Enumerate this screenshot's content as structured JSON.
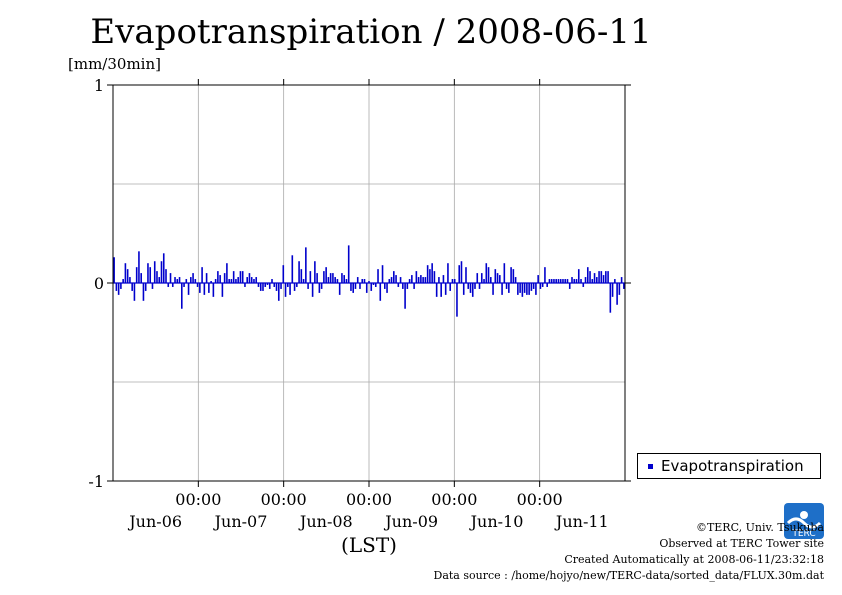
{
  "title": "Evapotranspiration / 2008-06-11",
  "y_unit": "[mm/30min]",
  "x_axis_label": "(LST)",
  "legend": {
    "label": "Evapotranspiration",
    "color": "#0000cc"
  },
  "credit": {
    "line1": "©TERC, Univ. Tsukuba",
    "line2": "Observed at TERC Tower site",
    "line3": "Created Automatically at 2008-06-11/23:32:18",
    "line4": "Data source : /home/hojyo/new/TERC-data/sorted_data/FLUX.30m.dat"
  },
  "logo": {
    "text": "TERC",
    "color": "#1e6fc8"
  },
  "chart_data": {
    "type": "bar",
    "title": "Evapotranspiration / 2008-06-11",
    "ylabel": "[mm/30min]",
    "xlabel": "(LST)",
    "ylim": [
      -1,
      1
    ],
    "y_ticks": [
      "1",
      "0",
      "-1"
    ],
    "y_tick_values": [
      1,
      0,
      -1
    ],
    "x_tick_labels_top": [
      "00:00",
      "00:00",
      "00:00",
      "00:00",
      "00:00"
    ],
    "x_tick_labels_bottom": [
      "Jun-06",
      "Jun-07",
      "Jun-08",
      "Jun-09",
      "Jun-10",
      "Jun-11"
    ],
    "grid": true,
    "legend_position": "right",
    "series": [
      {
        "name": "Evapotranspiration",
        "color": "#0000cc",
        "values": [
          0.13,
          -0.04,
          -0.06,
          -0.03,
          0.02,
          0.1,
          0.07,
          0.03,
          -0.04,
          -0.09,
          0.08,
          0.16,
          0.05,
          -0.09,
          -0.04,
          0.1,
          0.08,
          -0.03,
          0.11,
          0.06,
          0.03,
          0.11,
          0.15,
          0.07,
          -0.02,
          0.05,
          -0.02,
          0.03,
          0.02,
          0.03,
          -0.13,
          -0.02,
          0.02,
          -0.06,
          0.03,
          0.05,
          0.02,
          -0.02,
          -0.05,
          0.08,
          -0.06,
          0.05,
          -0.05,
          0.01,
          -0.07,
          0.02,
          0.06,
          0.04,
          -0.07,
          0.05,
          0.1,
          0.02,
          0.02,
          0.06,
          0.02,
          0.03,
          0.06,
          0.06,
          -0.02,
          0.03,
          0.05,
          0.03,
          0.02,
          0.03,
          -0.02,
          -0.04,
          -0.04,
          -0.02,
          -0.01,
          -0.03,
          0.02,
          -0.02,
          -0.04,
          -0.09,
          -0.03,
          0.09,
          -0.07,
          -0.02,
          -0.06,
          0.14,
          -0.04,
          -0.02,
          0.11,
          0.07,
          0.02,
          0.18,
          -0.03,
          0.06,
          -0.07,
          0.11,
          0.05,
          -0.05,
          -0.03,
          0.06,
          0.08,
          0.03,
          0.05,
          0.05,
          0.03,
          0.02,
          -0.06,
          0.05,
          0.04,
          0.02,
          0.19,
          -0.04,
          -0.05,
          -0.03,
          0.03,
          -0.03,
          0.02,
          0.02,
          -0.05,
          0.01,
          -0.04,
          -0.01,
          -0.02,
          0.07,
          -0.09,
          0.09,
          -0.03,
          -0.05,
          0.02,
          0.03,
          0.06,
          0.04,
          -0.02,
          0.03,
          -0.03,
          -0.13,
          -0.03,
          0.02,
          0.04,
          -0.03,
          0.06,
          0.03,
          0.04,
          0.03,
          0.03,
          0.09,
          0.07,
          0.1,
          0.06,
          -0.07,
          0.03,
          -0.07,
          0.04,
          -0.06,
          0.1,
          -0.04,
          0.02,
          0.02,
          -0.17,
          0.09,
          0.11,
          -0.06,
          0.08,
          -0.03,
          -0.05,
          -0.07,
          -0.03,
          0.05,
          -0.03,
          0.05,
          0.02,
          0.1,
          0.08,
          0.03,
          -0.06,
          0.07,
          0.05,
          0.04,
          -0.06,
          0.1,
          -0.03,
          -0.05,
          0.08,
          0.07,
          0.03,
          -0.06,
          -0.05,
          -0.07,
          -0.05,
          -0.06,
          -0.06,
          -0.04,
          -0.03,
          -0.06,
          0.04,
          -0.03,
          -0.02,
          0.08,
          -0.02,
          0.02,
          0.02,
          0.02,
          0.02,
          0.02,
          0.02,
          0.02,
          0.02,
          0.02,
          -0.03,
          0.03,
          0.02,
          0.02,
          0.07,
          0.02,
          -0.02,
          0.03,
          0.08,
          0.06,
          0.02,
          0.05,
          0.03,
          0.06,
          0.06,
          0.04,
          0.06,
          0.06,
          -0.15,
          -0.07,
          0.02,
          -0.11,
          -0.06,
          0.03,
          -0.03
        ]
      }
    ]
  }
}
